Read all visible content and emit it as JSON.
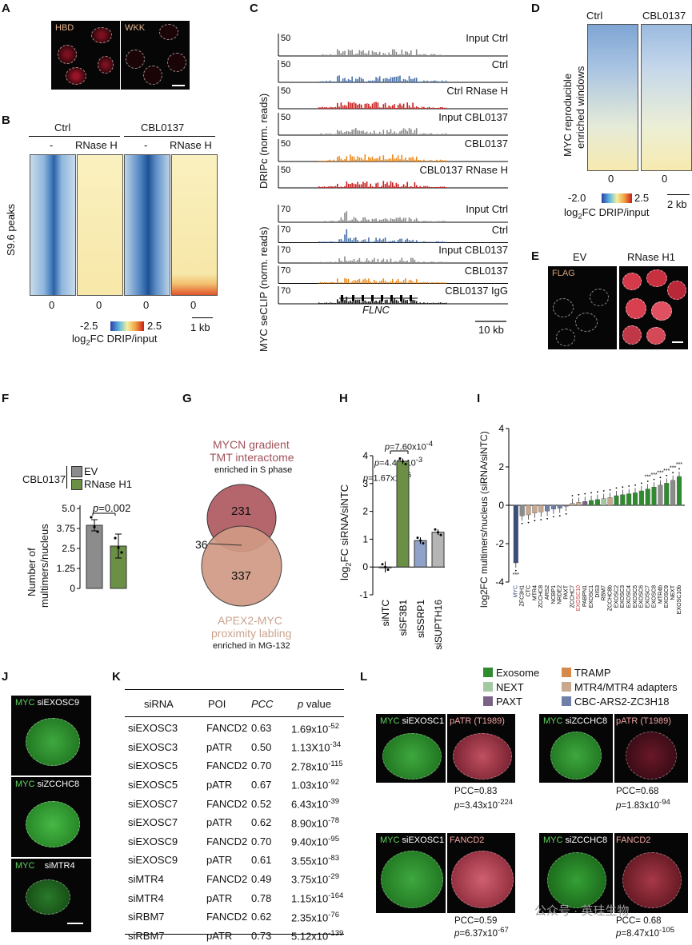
{
  "panels": [
    "A",
    "B",
    "C",
    "D",
    "E",
    "F",
    "G",
    "H",
    "I",
    "J",
    "K",
    "L"
  ],
  "panelA": {
    "left_label": "HBD",
    "right_label": "WKK"
  },
  "panelB": {
    "groups": [
      "Ctrl",
      "CBL0137"
    ],
    "conditions": [
      "-",
      "RNase H",
      "-",
      "RNase H"
    ],
    "ylabel": "S9.6 peaks",
    "xticks": [
      "0",
      "0",
      "0",
      "0"
    ],
    "scale_min": "-2.5",
    "scale_max": "2.5",
    "scale_label": "log",
    "scale_sub": "2",
    "scale_label_rest": "FC DRIP/input",
    "scalebar": "1 kb"
  },
  "panelC": {
    "drip_ylabel": "DRIPc (norm. reads)",
    "myc_ylabel": "MYC seCLIP (norm. reads)",
    "drip_scale": "50",
    "myc_scale": "70",
    "drip_tracks": [
      {
        "name": "Input Ctrl",
        "color": "#8a8a8a",
        "scale": "50"
      },
      {
        "name": "Ctrl",
        "color": "#4a72a8",
        "scale": "50"
      },
      {
        "name": "Ctrl RNase H",
        "color": "#c81e1e",
        "scale": "50"
      },
      {
        "name": "Input CBL0137",
        "color": "#8a8a8a",
        "scale": "50"
      },
      {
        "name": "CBL0137",
        "color": "#ec8a1c",
        "scale": "50"
      },
      {
        "name": "CBL0137 RNase H",
        "color": "#c81e1e",
        "scale": "50"
      }
    ],
    "myc_tracks": [
      {
        "name": "Input Ctrl",
        "color": "#8a8a8a",
        "scale": "70"
      },
      {
        "name": "Ctrl",
        "color": "#4a72a8",
        "scale": "70"
      },
      {
        "name": "Input CBL0137",
        "color": "#8a8a8a",
        "scale": "70"
      },
      {
        "name": "CBL0137",
        "color": "#ec8a1c",
        "scale": "70"
      },
      {
        "name": "CBL0137 IgG",
        "color": "#111111",
        "scale": "70"
      }
    ],
    "gene": "FLNC",
    "scalebar": "10 kb"
  },
  "panelD": {
    "columns": [
      "Ctrl",
      "CBL0137"
    ],
    "ylabel_line1": "MYC reproducible",
    "ylabel_line2": "enriched windows",
    "xticks": [
      "0",
      "0"
    ],
    "scale_min": "-2.0",
    "scale_max": "2.5",
    "scale_label": "log",
    "scale_sub": "2",
    "scale_label_rest": "FC DRIP/input",
    "scalebar": "2 kb"
  },
  "panelE": {
    "columns": [
      "EV",
      "RNase H1"
    ],
    "stain": "FLAG"
  },
  "panelF": {
    "treatment": "CBL0137",
    "legend": [
      {
        "name": "EV",
        "color": "#8c8c8c"
      },
      {
        "name": "RNase H1",
        "color": "#6a8f45"
      }
    ],
    "ylabel_line1": "Number of",
    "ylabel_line2": "multimers/nucleus",
    "yticks": [
      "5.0",
      "3.75",
      "2.5",
      "1.25",
      "0"
    ],
    "pvalue_italic": "p",
    "pvalue_rest": "=0.002"
  },
  "panelG": {
    "top_title_line1": "MYCN gradient",
    "top_title_line2": "TMT interactome",
    "top_sub": "enriched in S phase",
    "bottom_title_line1": "APEX2-MYC",
    "bottom_title_line2": "proximity labling",
    "bottom_sub": "enriched in MG-132",
    "top_only": "231",
    "overlap": "36",
    "bottom_only": "337"
  },
  "panelH": {
    "ylabel_pre": "log",
    "ylabel_sub": "2",
    "ylabel_post": "FC siRNA/siNTC",
    "yticks": [
      "4",
      "3",
      "2",
      "1",
      "0",
      "-1"
    ],
    "pvalues": [
      {
        "p": "p",
        "rest": "=7.60x10",
        "exp": "-4"
      },
      {
        "p": "p",
        "rest": "=4.43x10",
        "exp": "-3"
      },
      {
        "p": "p",
        "rest": "=1.67x10",
        "exp": "-6"
      }
    ],
    "categories": [
      "siNTC",
      "siSF3B1",
      "siSSRP1",
      "siSUPTH16"
    ]
  },
  "chart_data": [
    {
      "type": "bar",
      "title": "",
      "categories": [
        "EV",
        "RNase H1"
      ],
      "values": [
        3.95,
        2.65
      ],
      "errors": [
        0.35,
        0.75
      ],
      "ylabel": "Number of multimers/nucleus",
      "ylim": [
        0,
        5.0
      ],
      "colors": [
        "#8c8c8c",
        "#6a8f45"
      ]
    },
    {
      "type": "bar",
      "title": "",
      "categories": [
        "siNTC",
        "siSF3B1",
        "siSSRP1",
        "siSUPTH16"
      ],
      "values": [
        0.0,
        3.8,
        0.95,
        1.25
      ],
      "errors": [
        0.2,
        0.1,
        0.12,
        0.1
      ],
      "ylabel": "log2FC siRNA/siNTC",
      "ylim": [
        -1,
        4
      ],
      "colors": [
        "#ffffff",
        "#6a8f45",
        "#8fa2c9",
        "#b5b5b5"
      ]
    },
    {
      "type": "bar",
      "title": "",
      "ylabel": "log2FC multimers/nucleus (siRNA/siNTC)",
      "ylim": [
        -4,
        4
      ],
      "yticks": [
        "4",
        "2",
        "0",
        "-2",
        "-4"
      ],
      "categories": [
        "MYC",
        "ZFC3H1",
        "CTC",
        "MTR4",
        "ZCCHC8",
        "ARS2",
        "NCBP1",
        "NRDE2",
        "PAXT",
        "ZCCHC7",
        "EXOSC10",
        "PABPN1",
        "EXOSC1",
        "DIS3",
        "RBM7",
        "ZCCHC8b",
        "EXOSC2",
        "EXOSC3",
        "EXOSC4",
        "EXOSC5",
        "EXOSC6",
        "EXOSC7",
        "EXOSC8",
        "MTR4b",
        "EXOSC9",
        "NEXT",
        "EXOSC10b"
      ],
      "values": [
        -3.0,
        -0.55,
        -0.5,
        -0.4,
        -0.35,
        -0.3,
        -0.2,
        -0.15,
        -0.05,
        0.1,
        0.15,
        0.2,
        0.25,
        0.3,
        0.35,
        0.4,
        0.5,
        0.55,
        0.6,
        0.65,
        0.75,
        0.85,
        0.95,
        1.05,
        1.15,
        1.3,
        1.5
      ],
      "colors": [
        "#3a4f7a",
        "#8c8c8c",
        "#c9a98e",
        "#c9a98e",
        "#c9a98e",
        "#6e80a8",
        "#6e80a8",
        "#6e80a8",
        "#7b6287",
        "#c9a98e",
        "#c9a98e",
        "#7b6287",
        "#2e8b2e",
        "#2e8b2e",
        "#a3c9a3",
        "#c9a98e",
        "#2e8b2e",
        "#2e8b2e",
        "#2e8b2e",
        "#2e8b2e",
        "#2e8b2e",
        "#2e8b2e",
        "#2e8b2e",
        "#8c8c8c",
        "#2e8b2e",
        "#8c8c8c",
        "#2e8b2e"
      ]
    }
  ],
  "panelI": {
    "legend": [
      {
        "name": "Exosome",
        "color": "#2e8b2e"
      },
      {
        "name": "TRAMP",
        "color": "#d68a4a"
      },
      {
        "name": "NEXT",
        "color": "#a3c9a3"
      },
      {
        "name": "MTR4/MTR4 adapters",
        "color": "#c9a98e"
      },
      {
        "name": "PAXT",
        "color": "#7b6287"
      },
      {
        "name": "CBC-ARS2-ZC3H18",
        "color": "#6e80a8"
      }
    ]
  },
  "panelJ": {
    "rows": [
      {
        "stain": "MYC",
        "sirna": "siEXOSC9"
      },
      {
        "stain": "MYC",
        "sirna": "siZCCHC8"
      },
      {
        "stain": "MYC",
        "sirna": "siMTR4"
      }
    ]
  },
  "panelK": {
    "headers": [
      "siRNA",
      "POI",
      "PCC",
      "p value"
    ],
    "rows": [
      [
        "siEXOSC3",
        "FANCD2",
        "0.63",
        "1.69x10",
        "-52"
      ],
      [
        "siEXOSC3",
        "pATR",
        "0.50",
        "1.13X10",
        "-34"
      ],
      [
        "siEXOSC5",
        "FANCD2",
        "0.70",
        "2.78x10",
        "-115"
      ],
      [
        "siEXOSC5",
        "pATR",
        "0.67",
        "1.03x10",
        "-92"
      ],
      [
        "siEXOSC7",
        "FANCD2",
        "0.52",
        "6.43x10",
        "-39"
      ],
      [
        "siEXOSC7",
        "pATR",
        "0.62",
        "8.90x10",
        "-78"
      ],
      [
        "siEXOSC9",
        "FANCD2",
        "0.70",
        "9.40x10",
        "-95"
      ],
      [
        "siEXOSC9",
        "pATR",
        "0.61",
        "3.55x10",
        "-83"
      ],
      [
        "siMTR4",
        "FANCD2",
        "0.49",
        "3.75x10",
        "-29"
      ],
      [
        "siMTR4",
        "pATR",
        "0.78",
        "1.15x10",
        "-164"
      ],
      [
        "siRBM7",
        "FANCD2",
        "0.62",
        "2.35x10",
        "-76"
      ],
      [
        "siRBM7",
        "pATR",
        "0.73",
        "5.12x10",
        "-139"
      ]
    ]
  },
  "panelL": {
    "cells": [
      {
        "stain": "MYC",
        "sirna": "siEXOSC1",
        "poi": "pATR (T1989)",
        "pcc": "PCC=0.83",
        "p": "p",
        "prest": "=3.43x10",
        "pexp": "-224"
      },
      {
        "stain": "MYC",
        "sirna": "siZCCHC8",
        "poi": "pATR (T1989)",
        "pcc": "PCC=0.68",
        "p": "p",
        "prest": "=1.83x10",
        "pexp": "-94"
      },
      {
        "stain": "MYC",
        "sirna": "siEXOSC1",
        "poi": "FANCD2",
        "pcc": "PCC=0.59",
        "p": "p",
        "prest": "=6.37x10",
        "pexp": "-67"
      },
      {
        "stain": "MYC",
        "sirna": "siZCCHC8",
        "poi": "FANCD2",
        "pcc": "PCC= 0.68",
        "p": "p",
        "prest": "=8.47x10",
        "pexp": "-105"
      }
    ]
  },
  "watermark": "公众号 · 英珪生物"
}
